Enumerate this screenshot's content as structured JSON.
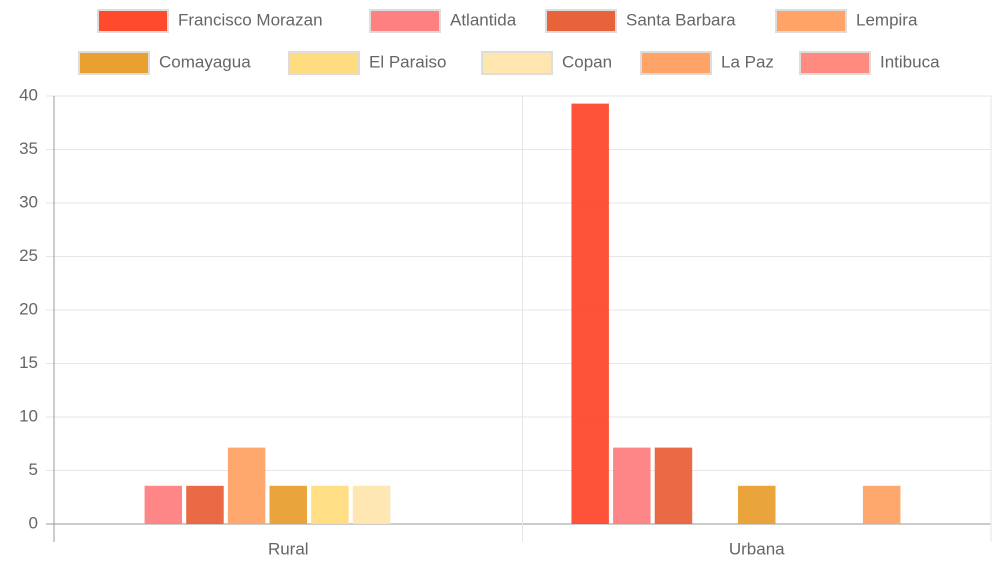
{
  "chart_data": {
    "type": "bar",
    "categories": [
      "Rural",
      "Urbana"
    ],
    "series": [
      {
        "name": "Francisco Morazan",
        "color": "#ff4a2e",
        "values": [
          0,
          39.29
        ]
      },
      {
        "name": "Atlantida",
        "color": "#ff8080",
        "values": [
          3.57,
          7.14
        ]
      },
      {
        "name": "Santa Barbara",
        "color": "#e8623a",
        "values": [
          3.57,
          7.14
        ]
      },
      {
        "name": "Lempira",
        "color": "#ffa366",
        "values": [
          7.14,
          0
        ]
      },
      {
        "name": "Comayagua",
        "color": "#e8a030",
        "values": [
          3.57,
          3.57
        ]
      },
      {
        "name": "El Paraiso",
        "color": "#ffdc80",
        "values": [
          3.57,
          0
        ]
      },
      {
        "name": "Copan",
        "color": "#ffe6b0",
        "values": [
          3.57,
          0
        ]
      },
      {
        "name": "La Paz",
        "color": "#ffa366",
        "values": [
          0,
          3.57
        ]
      },
      {
        "name": "Intibuca",
        "color": "#ff8a80",
        "values": [
          0,
          0
        ]
      }
    ],
    "ylim": [
      0,
      40
    ],
    "yticks": [
      0,
      5,
      10,
      15,
      20,
      25,
      30,
      35,
      40
    ],
    "grid": true,
    "legend": "top"
  }
}
